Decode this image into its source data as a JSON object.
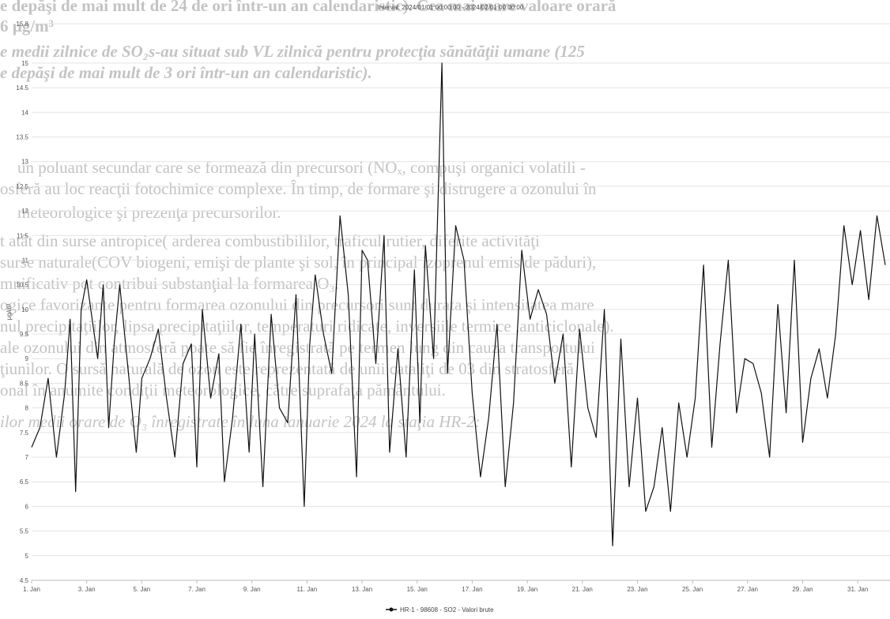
{
  "document": {
    "lines": [
      {
        "text": "e depăşi de mai mult de 24 de ori într-un an calendaristic). Cea mai mare valoare orară",
        "style": "b"
      },
      {
        "text": "6 µg/m³",
        "style": "b"
      },
      {
        "text": "e medii zilnice de SO₂s-au situat sub VL zilnică pentru protecţia sănătăţii umane (125",
        "style": "bi"
      },
      {
        "text": "e depăşi de mai mult de 3 ori într-un an calendaristic).",
        "style": "bi"
      },
      {
        "text": "un poluant secundar care se formează din precursori (NOₓ, compuşi organici volatili -",
        "style": ""
      },
      {
        "text": "osferă au loc reacţii fotochimice complexe. În timp, de formare şi distrugere a ozonului în",
        "style": ""
      },
      {
        "text": "meteorologice şi prezenţa precursorilor.",
        "style": ""
      },
      {
        "text": "t atât din surse antropice( arderea combustibililor, traficul rutier, diferite activităţi",
        "style": ""
      },
      {
        "text": "surse naturale(COV biogeni, emişi de plante şi sol, în principal izoprenul emis de păduri),",
        "style": ""
      },
      {
        "text": "mnificativ pot contribui substanţial la formarea O₃.",
        "style": ""
      },
      {
        "text": "ogice favorizante pentru formarea ozonului din precursori sunt durata şi intensitatea mare",
        "style": ""
      },
      {
        "text": "nul precipitaţiilor, lipsa precipitaţiilor, temperaturi ridicate, inversiile termice ,anticiclonale).",
        "style": ""
      },
      {
        "text": "ale ozonului din atmosferă poate să fie înregistrată pe termen lung din cauza transportului",
        "style": ""
      },
      {
        "text": "ţiunilor. O sursă naturală de ozon este reprezentată de unii cataliţi de 03 din stratosferă",
        "style": ""
      },
      {
        "text": "onal în anumite condiţii meteorologice, către suprafaţa pământului.",
        "style": ""
      },
      {
        "text": "ilor medii orare de O₃ înregistrate în luna ianuarie  2024 la  staţia  HR-2:",
        "style": "i"
      }
    ]
  },
  "chart_data": {
    "type": "line",
    "title": "Interval: 2024/01/01 00:00:00 - 2024/02/01 00:00:00",
    "ylabel": "µg/m³",
    "xlabel": "",
    "ylim": [
      4.5,
      15.8
    ],
    "xlim": [
      1,
      32
    ],
    "grid": true,
    "legend_position": "bottom-center",
    "y_ticks": [
      "4.5",
      "5",
      "5.5",
      "6",
      "6.5",
      "7",
      "7.5",
      "8",
      "8.5",
      "9",
      "9.5",
      "10",
      "10.5",
      "11",
      "11.5",
      "12",
      "12.5",
      "13",
      "13.5",
      "14",
      "14.5",
      "15",
      "15.8"
    ],
    "x_ticks": [
      {
        "day": 1,
        "label": "1. Jan"
      },
      {
        "day": 3,
        "label": "3. Jan"
      },
      {
        "day": 5,
        "label": "5. Jan"
      },
      {
        "day": 7,
        "label": "7. Jan"
      },
      {
        "day": 9,
        "label": "9. Jan"
      },
      {
        "day": 11,
        "label": "11. Jan"
      },
      {
        "day": 13,
        "label": "13. Jan"
      },
      {
        "day": 15,
        "label": "15. Jan"
      },
      {
        "day": 17,
        "label": "17. Jan"
      },
      {
        "day": 19,
        "label": "19. Jan"
      },
      {
        "day": 21,
        "label": "21. Jan"
      },
      {
        "day": 23,
        "label": "23. Jan"
      },
      {
        "day": 25,
        "label": "25. Jan"
      },
      {
        "day": 27,
        "label": "27. Jan"
      },
      {
        "day": 29,
        "label": "29. Jan"
      },
      {
        "day": 31,
        "label": "31. Jan"
      }
    ],
    "series": [
      {
        "name": "HR-1 - 98608 - SO2 - Valori brute",
        "color": "#111111",
        "x": [
          1.0,
          1.3,
          1.6,
          1.9,
          2.2,
          2.4,
          2.6,
          2.8,
          3.0,
          3.2,
          3.4,
          3.6,
          3.8,
          4.0,
          4.2,
          4.5,
          4.8,
          5.0,
          5.3,
          5.6,
          5.9,
          6.2,
          6.5,
          6.8,
          7.0,
          7.2,
          7.5,
          7.8,
          8.0,
          8.3,
          8.6,
          8.9,
          9.1,
          9.4,
          9.7,
          10.0,
          10.3,
          10.6,
          10.9,
          11.1,
          11.3,
          11.6,
          11.9,
          12.2,
          12.5,
          12.8,
          13.0,
          13.2,
          13.5,
          13.8,
          14.0,
          14.3,
          14.6,
          14.9,
          15.1,
          15.3,
          15.6,
          15.9,
          16.1,
          16.4,
          16.7,
          17.0,
          17.3,
          17.6,
          17.9,
          18.2,
          18.5,
          18.8,
          19.1,
          19.4,
          19.7,
          20.0,
          20.3,
          20.6,
          20.9,
          21.2,
          21.5,
          21.8,
          22.1,
          22.4,
          22.7,
          23.0,
          23.3,
          23.6,
          23.9,
          24.2,
          24.5,
          24.8,
          25.1,
          25.4,
          25.7,
          26.0,
          26.3,
          26.6,
          26.9,
          27.2,
          27.5,
          27.8,
          28.1,
          28.4,
          28.7,
          29.0,
          29.3,
          29.6,
          29.9,
          30.2,
          30.5,
          30.8,
          31.1,
          31.4,
          31.7,
          32.0
        ],
        "values": [
          7.2,
          7.6,
          8.6,
          7.0,
          8.3,
          9.8,
          6.3,
          10.0,
          10.6,
          9.8,
          9.0,
          10.5,
          7.6,
          9.3,
          10.5,
          8.8,
          7.1,
          8.6,
          9.0,
          9.6,
          8.2,
          7.0,
          8.9,
          9.3,
          6.8,
          10.0,
          8.2,
          9.1,
          6.5,
          7.8,
          9.7,
          7.1,
          9.5,
          6.4,
          9.9,
          8.0,
          7.7,
          10.3,
          6.0,
          9.3,
          10.7,
          9.5,
          8.7,
          11.9,
          10.3,
          6.6,
          11.2,
          11.0,
          8.9,
          11.5,
          7.1,
          9.2,
          7.0,
          10.8,
          7.7,
          11.3,
          9.0,
          15.0,
          8.7,
          11.7,
          11.0,
          8.3,
          6.6,
          7.8,
          9.7,
          6.4,
          8.1,
          11.2,
          9.8,
          10.4,
          9.9,
          8.5,
          9.5,
          6.8,
          9.6,
          8.0,
          7.4,
          10.0,
          5.2,
          9.4,
          6.4,
          8.2,
          5.9,
          6.4,
          7.6,
          5.9,
          8.1,
          7.0,
          8.2,
          10.9,
          7.2,
          9.3,
          11.0,
          7.9,
          9.0,
          8.9,
          8.3,
          7.0,
          10.1,
          7.9,
          11.0,
          7.3,
          8.6,
          9.2,
          8.2,
          9.5,
          11.7,
          10.5,
          11.6,
          10.2,
          11.9,
          10.9
        ]
      }
    ]
  }
}
